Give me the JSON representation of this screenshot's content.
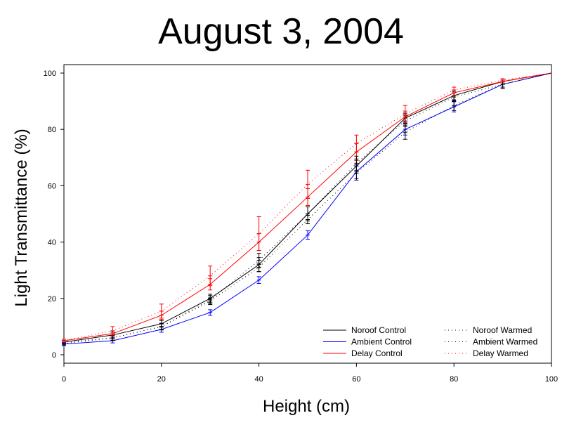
{
  "colors": {
    "noroof": "#000000",
    "ambient": "#0000ff",
    "delay": "#ff0000",
    "axis": "#000000",
    "background": "#ffffff"
  },
  "chart_data": {
    "type": "line",
    "title": "August 3, 2004",
    "xlabel": "Height (cm)",
    "ylabel": "Light Transmittance (%)",
    "xlim": [
      0,
      100
    ],
    "ylim": [
      0,
      100
    ],
    "xticks": [
      0,
      20,
      40,
      60,
      80,
      100
    ],
    "yticks": [
      0,
      20,
      40,
      60,
      80,
      100
    ],
    "grid": false,
    "legend_position": "bottom-right",
    "x": [
      0,
      10,
      20,
      30,
      40,
      50,
      60,
      70,
      80,
      90,
      100
    ],
    "series": [
      {
        "name": "Noroof Control",
        "color": "#000000",
        "style": "solid",
        "values": [
          4.5,
          7,
          11,
          20,
          32,
          50,
          67,
          84,
          92,
          97,
          100
        ],
        "error": [
          0.6,
          1.0,
          1.2,
          1.5,
          2.5,
          2.5,
          2.5,
          1.8,
          1.5,
          1.0,
          0
        ]
      },
      {
        "name": "Ambient Control",
        "color": "#0000ff",
        "style": "solid",
        "values": [
          3.8,
          5,
          9,
          15,
          26.5,
          42.5,
          65,
          80,
          88,
          96,
          100
        ],
        "error": [
          0.5,
          0.8,
          1.0,
          1.0,
          1.2,
          1.5,
          2.5,
          2.0,
          1.8,
          1.5,
          0
        ]
      },
      {
        "name": "Delay Control",
        "color": "#ff0000",
        "style": "solid",
        "values": [
          5,
          7.5,
          14,
          25,
          40,
          56,
          72,
          84.5,
          93,
          97,
          100
        ],
        "error": [
          0.5,
          1.0,
          1.5,
          2.0,
          3.0,
          3.0,
          3.0,
          2.0,
          1.0,
          0.5,
          0
        ]
      },
      {
        "name": "Noroof Warmed",
        "color": "#000000",
        "style": "dotted",
        "values": [
          4.5,
          6,
          10,
          19.5,
          33.5,
          50,
          68,
          83,
          91.5,
          96,
          100
        ],
        "error": [
          0.5,
          1.0,
          1.2,
          1.5,
          2.5,
          2.5,
          2.5,
          2.0,
          1.5,
          1.0,
          0
        ]
      },
      {
        "name": "Ambient Warmed",
        "color": "#000000",
        "style": "dotted",
        "values": [
          4,
          6,
          10,
          19,
          31,
          48,
          64.5,
          79,
          88.5,
          96,
          100
        ],
        "error": [
          0.5,
          0.8,
          1.0,
          1.2,
          1.5,
          1.5,
          2.5,
          2.5,
          1.8,
          1.5,
          0
        ]
      },
      {
        "name": "Delay Warmed",
        "color": "#ff0000",
        "style": "dotted",
        "values": [
          5,
          8.5,
          15.5,
          28,
          43,
          60.5,
          75,
          85.5,
          94,
          97.5,
          100
        ],
        "error": [
          0.5,
          1.5,
          2.5,
          3.5,
          6.0,
          5.0,
          3.0,
          3.0,
          1.0,
          0.5,
          0
        ]
      }
    ]
  }
}
